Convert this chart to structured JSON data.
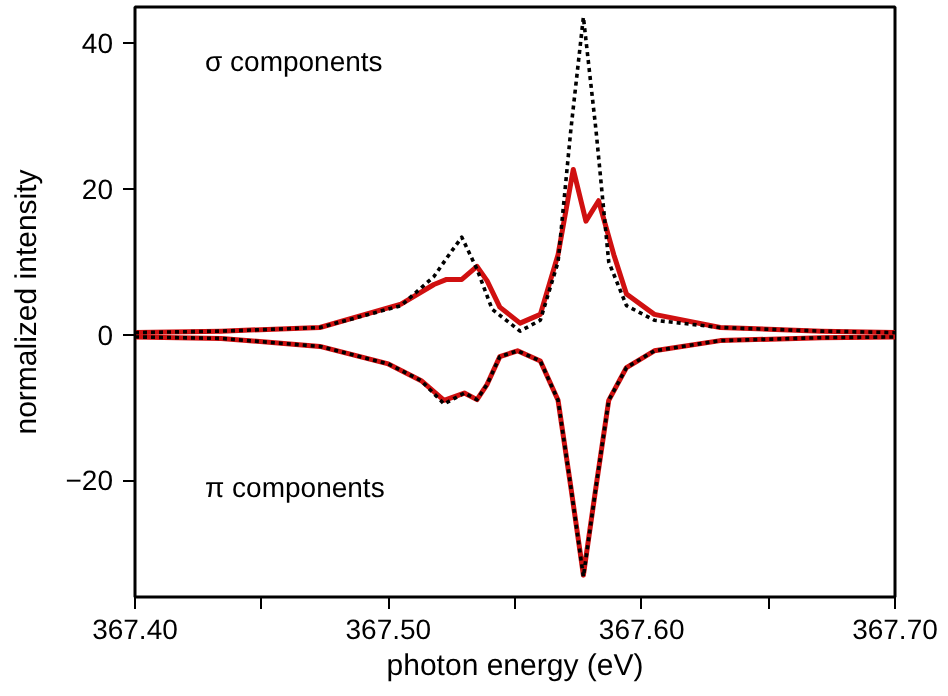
{
  "chart_data": {
    "type": "line",
    "xlabel": "photon energy (eV)",
    "ylabel": "normalized intensity",
    "annotations": [
      "σ components",
      "π components"
    ],
    "xlim": [
      367.4,
      367.7
    ],
    "ylim": [
      -36,
      45
    ],
    "xticks": [
      {
        "value": 367.4,
        "label": "367.40"
      },
      {
        "value": 367.45,
        "label": null
      },
      {
        "value": 367.5,
        "label": "367.50"
      },
      {
        "value": 367.55,
        "label": null
      },
      {
        "value": 367.6,
        "label": "367.60"
      },
      {
        "value": 367.65,
        "label": null
      },
      {
        "value": 367.7,
        "label": "367.70"
      }
    ],
    "yticks": [
      -20,
      0,
      20,
      40
    ],
    "grid": false,
    "series": [
      {
        "color": "#000000",
        "line_style": "dotted",
        "x": [
          367.4,
          367.434,
          367.473,
          367.505,
          367.518,
          367.524,
          367.529,
          367.535,
          367.541,
          367.552,
          367.56,
          367.567,
          367.572,
          367.577,
          367.582,
          367.587,
          367.594,
          367.605,
          367.631,
          367.671,
          367.7
        ],
        "values": [
          0.3,
          0.5,
          1.0,
          4.0,
          8.0,
          11.0,
          13.4,
          9.0,
          3.5,
          0.5,
          2.0,
          10.0,
          28.0,
          43.6,
          28.0,
          10.0,
          4.0,
          2.0,
          1.0,
          0.5,
          0.3
        ]
      },
      {
        "color": "#d01010",
        "line_style": "solid",
        "x": [
          367.4,
          367.434,
          367.473,
          367.505,
          367.518,
          367.523,
          367.529,
          367.535,
          367.539,
          367.544,
          367.552,
          367.56,
          367.567,
          367.573,
          367.578,
          367.583,
          367.589,
          367.594,
          367.605,
          367.631,
          367.671,
          367.7
        ],
        "values": [
          0.3,
          0.5,
          1.0,
          4.2,
          6.9,
          7.6,
          7.6,
          9.4,
          7.4,
          3.8,
          1.6,
          2.8,
          11.0,
          22.7,
          15.6,
          18.4,
          11.0,
          5.6,
          2.8,
          1.0,
          0.5,
          0.3
        ]
      },
      {
        "color": "#000000",
        "line_style": "dotted",
        "x": [
          367.4,
          367.434,
          367.473,
          367.5,
          367.513,
          367.522,
          367.53,
          367.535,
          367.539,
          367.544,
          367.551,
          367.56,
          367.567,
          367.572,
          367.577,
          367.582,
          367.587,
          367.594,
          367.605,
          367.631,
          367.671,
          367.7
        ],
        "values": [
          -0.3,
          -0.5,
          -1.6,
          -4.0,
          -6.3,
          -9.5,
          -8.0,
          -8.9,
          -6.8,
          -3.0,
          -2.2,
          -3.6,
          -9.0,
          -20.8,
          -33.2,
          -20.8,
          -9.0,
          -4.5,
          -2.2,
          -0.8,
          -0.4,
          -0.3
        ]
      },
      {
        "color": "#d01010",
        "line_style": "solid",
        "x": [
          367.4,
          367.434,
          367.473,
          367.5,
          367.513,
          367.522,
          367.53,
          367.535,
          367.539,
          367.544,
          367.551,
          367.56,
          367.567,
          367.572,
          367.577,
          367.582,
          367.587,
          367.594,
          367.605,
          367.631,
          367.671,
          367.7
        ],
        "values": [
          -0.3,
          -0.5,
          -1.6,
          -4.0,
          -6.3,
          -9.0,
          -8.0,
          -8.9,
          -6.8,
          -3.0,
          -2.2,
          -3.6,
          -9.0,
          -20.8,
          -33.0,
          -20.8,
          -9.0,
          -4.5,
          -2.2,
          -0.8,
          -0.4,
          -0.3
        ]
      }
    ]
  }
}
